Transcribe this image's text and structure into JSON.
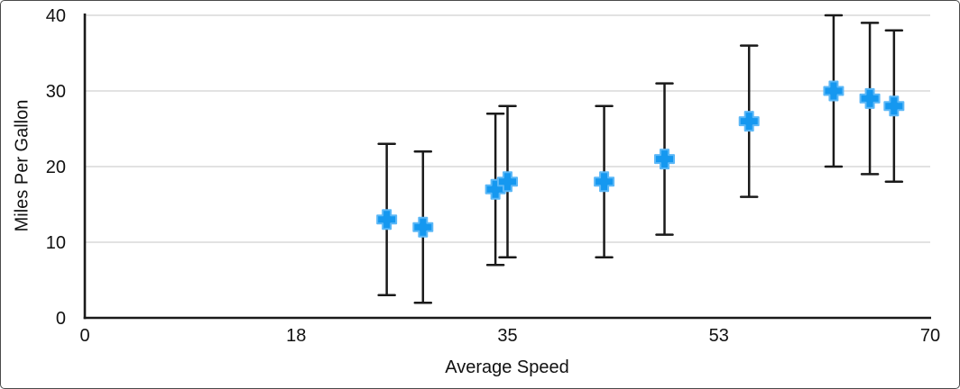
{
  "chart_data": {
    "type": "scatter",
    "title": "",
    "xlabel": "Average Speed",
    "ylabel": "Miles Per Gallon",
    "xlim": [
      0,
      70
    ],
    "ylim": [
      0,
      40
    ],
    "grid": true,
    "legend": false,
    "x_ticks": [
      {
        "pos": 0,
        "label": "0"
      },
      {
        "pos": 17.5,
        "label": "18"
      },
      {
        "pos": 35,
        "label": "35"
      },
      {
        "pos": 52.5,
        "label": "53"
      },
      {
        "pos": 70,
        "label": "70"
      }
    ],
    "y_ticks": [
      {
        "pos": 0,
        "label": "0"
      },
      {
        "pos": 10,
        "label": "10"
      },
      {
        "pos": 20,
        "label": "20"
      },
      {
        "pos": 30,
        "label": "30"
      },
      {
        "pos": 40,
        "label": "40"
      }
    ],
    "points": [
      {
        "x": 25,
        "y": 13,
        "err": 10
      },
      {
        "x": 28,
        "y": 12,
        "err": 10
      },
      {
        "x": 34,
        "y": 17,
        "err": 10
      },
      {
        "x": 35,
        "y": 18,
        "err": 10
      },
      {
        "x": 43,
        "y": 18,
        "err": 10
      },
      {
        "x": 48,
        "y": 21,
        "err": 10
      },
      {
        "x": 55,
        "y": 26,
        "err": 10
      },
      {
        "x": 62,
        "y": 30,
        "err": 10
      },
      {
        "x": 65,
        "y": 29,
        "err": 10
      },
      {
        "x": 67,
        "y": 28,
        "err": 10
      }
    ],
    "colors": {
      "marker_fill": "#1598f0",
      "marker_edge": "#5cb8f7",
      "error_bar": "#1a1a1a",
      "axis": "#1a1a1a",
      "gridline": "#d8d8d8",
      "text": "#111111",
      "background": "#ffffff"
    }
  }
}
